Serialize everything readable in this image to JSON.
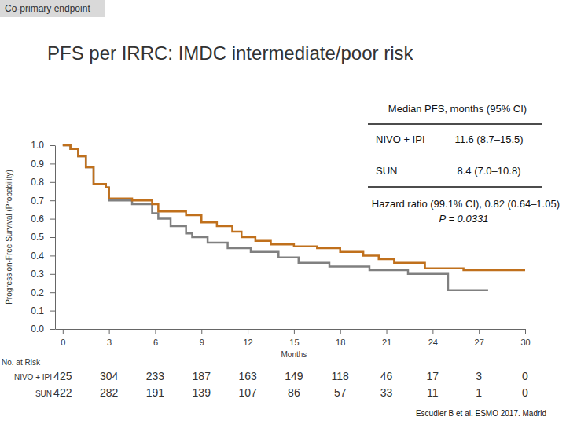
{
  "chart_data": {
    "type": "step",
    "header": "Co-primary endpoint",
    "title": "PFS per IRRC: IMDC intermediate/poor risk",
    "xlabel": "Months",
    "ylabel": "Progression-Free Survival (Probability)",
    "xlim": [
      -0.5,
      30
    ],
    "ylim": [
      0,
      1
    ],
    "xticks": [
      0,
      3,
      6,
      9,
      12,
      15,
      18,
      21,
      24,
      27,
      30
    ],
    "yticks": [
      {
        "value": 0,
        "label": "0.0"
      },
      0.1,
      0.2,
      0.3,
      0.4,
      0.5,
      0.6,
      0.7,
      0.8,
      0.9,
      {
        "value": 1,
        "label": "1.0"
      }
    ],
    "grid": false,
    "series": [
      {
        "name": "NIVO + IPI",
        "color": "#c0701c",
        "x": [
          0,
          0.5,
          1,
          1.5,
          2,
          2.8,
          3,
          4.5,
          5.8,
          6.2,
          8,
          9,
          10,
          11,
          11.6,
          12.5,
          13.5,
          15,
          16.5,
          18,
          19.5,
          20.5,
          21.5,
          23.5,
          26,
          28,
          30
        ],
        "values": [
          1,
          0.98,
          0.94,
          0.88,
          0.79,
          0.77,
          0.71,
          0.7,
          0.68,
          0.64,
          0.62,
          0.58,
          0.56,
          0.53,
          0.5,
          0.48,
          0.46,
          0.45,
          0.44,
          0.42,
          0.4,
          0.38,
          0.36,
          0.33,
          0.32,
          0.32,
          0.32
        ]
      },
      {
        "name": "SUN",
        "color": "#808080",
        "x": [
          0,
          0.5,
          1,
          1.5,
          2,
          2.8,
          3,
          4.5,
          5.8,
          6.2,
          7,
          8,
          8.4,
          9.4,
          10.7,
          12.2,
          14,
          15.3,
          17.3,
          19.9,
          22.4,
          25,
          27.6
        ],
        "values": [
          1,
          0.98,
          0.94,
          0.88,
          0.79,
          0.77,
          0.7,
          0.68,
          0.63,
          0.6,
          0.56,
          0.52,
          0.5,
          0.47,
          0.44,
          0.42,
          0.39,
          0.36,
          0.34,
          0.32,
          0.3,
          0.21,
          0.21
        ]
      }
    ],
    "median_table": {
      "title": "Median PFS, months (95% CI)",
      "values": [
        "11.6 (8.7–15.5)",
        "8.4 (7.0–10.8)"
      ]
    },
    "annotations": [
      "Hazard ratio (99.1% CI), 0.82 (0.64–1.05)",
      "P = 0.0331"
    ],
    "risk_table": {
      "title": "No. at Risk",
      "counts": [
        [
          425,
          304,
          233,
          187,
          163,
          149,
          118,
          46,
          17,
          3,
          0
        ],
        [
          422,
          282,
          191,
          139,
          107,
          86,
          57,
          33,
          11,
          1,
          0
        ]
      ]
    },
    "source": "Escudier B et al. ESMO 2017. Madrid"
  }
}
